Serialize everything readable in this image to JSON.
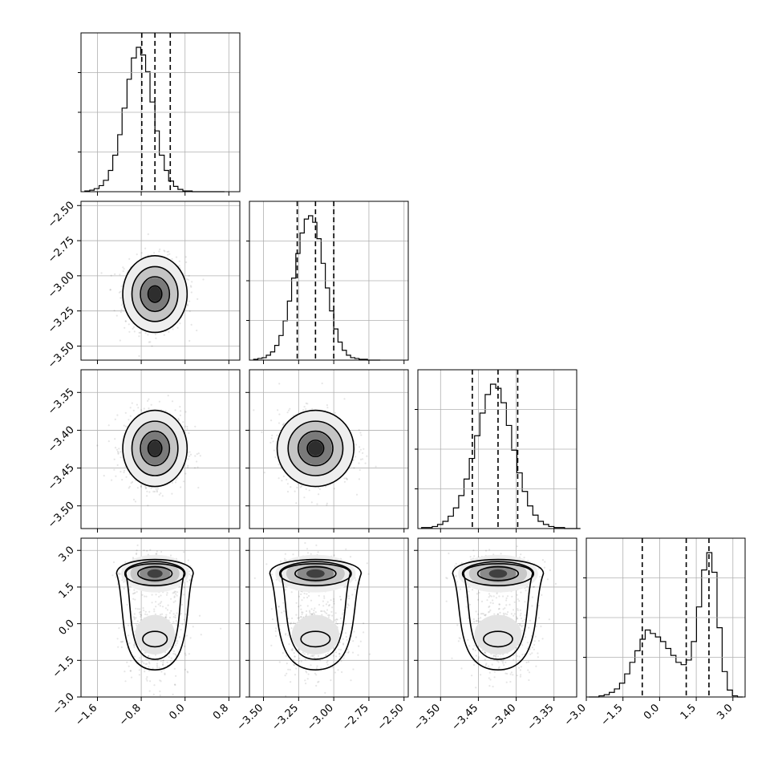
{
  "chart_data": {
    "type": "corner",
    "title": "",
    "parameters": [
      {
        "name": "",
        "range": [
          -1.9,
          1.0
        ],
        "ticks": [
          -1.6,
          -0.8,
          0.0,
          0.8
        ],
        "tick_labels": [
          "−1.6",
          "−0.8",
          "0.0",
          "0.8"
        ],
        "quantiles": [
          -0.79,
          -0.55,
          -0.27
        ]
      },
      {
        "name": "",
        "range": [
          -3.6,
          -2.47
        ],
        "ticks": [
          -3.5,
          -3.25,
          -3.0,
          -2.75,
          -2.5
        ],
        "tick_labels": [
          "−3.50",
          "−3.25",
          "−3.00",
          "−2.75",
          "−2.50"
        ],
        "quantiles": [
          -3.26,
          -3.13,
          -3.0
        ]
      },
      {
        "name": "",
        "range": [
          -3.53,
          -3.32
        ],
        "ticks": [
          -3.5,
          -3.45,
          -3.4,
          -3.35
        ],
        "tick_labels": [
          "−3.50",
          "−3.45",
          "−3.40",
          "−3.35"
        ],
        "quantiles": [
          -3.458,
          -3.424,
          -3.398
        ]
      },
      {
        "name": "",
        "range": [
          -3.0,
          3.5
        ],
        "ticks": [
          -3.0,
          -1.5,
          0.0,
          1.5,
          3.0
        ],
        "tick_labels": [
          "−3.0",
          "−1.5",
          "0.0",
          "1.5",
          "3.0"
        ],
        "quantiles": [
          -0.71,
          1.09,
          2.02
        ]
      }
    ],
    "histograms": [
      {
        "bins": [
          -1.83,
          -1.74,
          -1.66,
          -1.57,
          -1.49,
          -1.4,
          -1.32,
          -1.23,
          -1.15,
          -1.06,
          -0.98,
          -0.89,
          -0.81,
          -0.72,
          -0.64,
          -0.55,
          -0.47,
          -0.38,
          -0.3,
          -0.21,
          -0.13,
          -0.04,
          0.04,
          0.13,
          0.21,
          0.3,
          0.38,
          0.47,
          0.55,
          0.64,
          0.72
        ],
        "counts": [
          1,
          2,
          4,
          8,
          15,
          28,
          48,
          75,
          110,
          148,
          176,
          190,
          180,
          158,
          118,
          80,
          48,
          28,
          14,
          7,
          3,
          1,
          1,
          0,
          0,
          0,
          0,
          0,
          0,
          0
        ]
      },
      {
        "bins": [
          -3.57,
          -3.54,
          -3.51,
          -3.48,
          -3.45,
          -3.42,
          -3.39,
          -3.36,
          -3.33,
          -3.3,
          -3.27,
          -3.24,
          -3.21,
          -3.18,
          -3.15,
          -3.12,
          -3.09,
          -3.06,
          -3.03,
          -3.0,
          -2.97,
          -2.94,
          -2.91,
          -2.88,
          -2.85,
          -2.82,
          -2.79,
          -2.76,
          -2.73,
          -2.7,
          -2.67
        ],
        "counts": [
          1,
          2,
          3,
          6,
          10,
          18,
          30,
          48,
          72,
          100,
          130,
          155,
          172,
          176,
          168,
          148,
          118,
          88,
          60,
          38,
          22,
          12,
          6,
          3,
          2,
          1,
          1,
          0,
          0,
          0
        ]
      },
      {
        "bins": [
          -3.525,
          -3.518,
          -3.511,
          -3.504,
          -3.497,
          -3.49,
          -3.483,
          -3.476,
          -3.469,
          -3.462,
          -3.455,
          -3.448,
          -3.441,
          -3.434,
          -3.427,
          -3.42,
          -3.413,
          -3.406,
          -3.399,
          -3.392,
          -3.385,
          -3.378,
          -3.371,
          -3.364,
          -3.357,
          -3.35,
          -3.343,
          -3.336,
          -3.329,
          -3.322,
          -3.315
        ],
        "counts": [
          1,
          1,
          2,
          4,
          7,
          12,
          20,
          32,
          48,
          68,
          90,
          112,
          130,
          140,
          136,
          122,
          100,
          76,
          54,
          36,
          22,
          13,
          7,
          4,
          2,
          1,
          1,
          0,
          0,
          0
        ]
      },
      {
        "bins": [
          -2.9,
          -2.69,
          -2.48,
          -2.27,
          -2.06,
          -1.85,
          -1.64,
          -1.43,
          -1.22,
          -1.01,
          -0.8,
          -0.59,
          -0.38,
          -0.17,
          0.04,
          0.25,
          0.46,
          0.67,
          0.88,
          1.09,
          1.3,
          1.51,
          1.72,
          1.93,
          2.14,
          2.35,
          2.56,
          2.77,
          2.98,
          3.19,
          3.4
        ],
        "counts": [
          0,
          0,
          1,
          2,
          4,
          7,
          12,
          20,
          30,
          40,
          50,
          58,
          55,
          52,
          48,
          42,
          36,
          30,
          28,
          32,
          48,
          78,
          110,
          125,
          108,
          60,
          22,
          6,
          1,
          0
        ]
      }
    ],
    "pairs": [
      {
        "x_param": 0,
        "y_param": 1,
        "center": [
          -0.55,
          -3.13
        ],
        "sd": [
          0.28,
          0.13
        ],
        "mode": "unimodal"
      },
      {
        "x_param": 0,
        "y_param": 2,
        "center": [
          -0.55,
          -3.424
        ],
        "sd": [
          0.28,
          0.024
        ],
        "mode": "unimodal"
      },
      {
        "x_param": 1,
        "y_param": 2,
        "center": [
          -3.13,
          -3.424
        ],
        "sd": [
          0.13,
          0.024
        ],
        "mode": "unimodal"
      },
      {
        "x_param": 0,
        "y_param": 3,
        "center": [
          -0.55,
          0.6
        ],
        "sd": [
          0.28,
          1.2
        ],
        "mode": "bimodal",
        "y_modes": [
          2.05,
          -0.45
        ]
      },
      {
        "x_param": 1,
        "y_param": 3,
        "center": [
          -3.13,
          0.6
        ],
        "sd": [
          0.13,
          1.2
        ],
        "mode": "bimodal",
        "y_modes": [
          2.05,
          -0.45
        ]
      },
      {
        "x_param": 2,
        "y_param": 3,
        "center": [
          -3.424,
          0.6
        ],
        "sd": [
          0.024,
          1.2
        ],
        "mode": "bimodal",
        "y_modes": [
          2.05,
          -0.45
        ]
      }
    ],
    "contour_levels": 4,
    "grid": true
  }
}
